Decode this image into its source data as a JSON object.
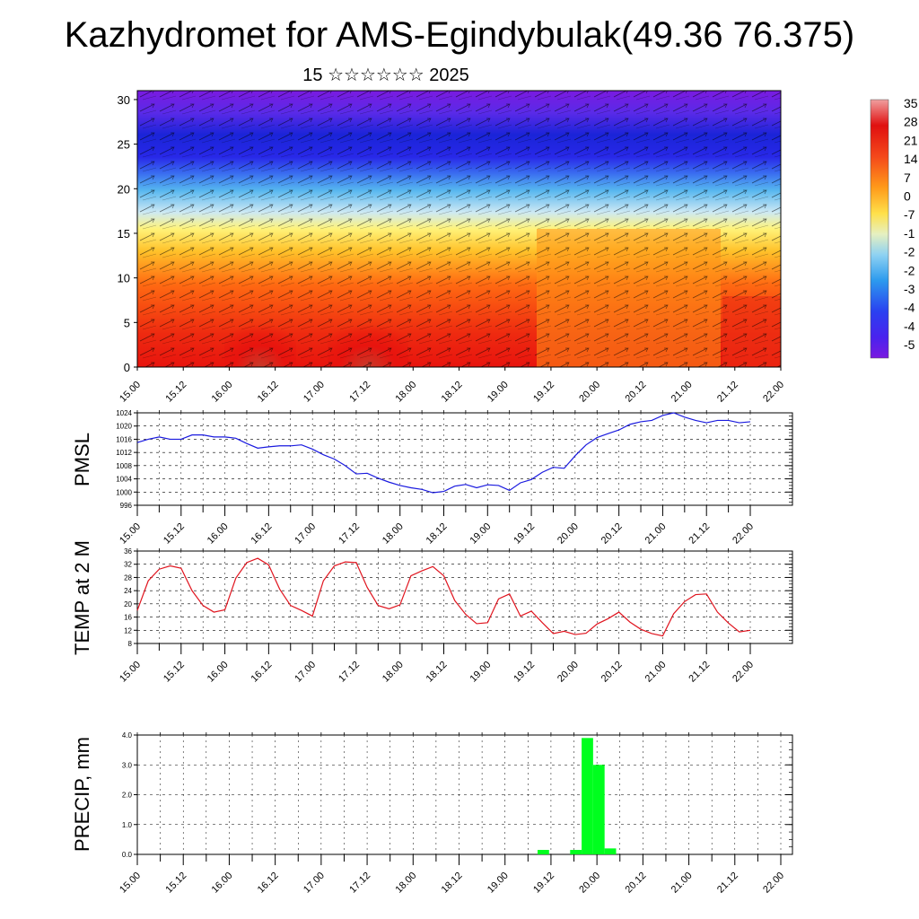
{
  "header": {
    "title": "Kazhydromet for AMS-Egindybulak(49.36 76.375)",
    "date_line": "15 ☆☆☆☆☆☆ 2025"
  },
  "colors": {
    "pmsl_line": "#1a1adf",
    "temp_line": "#e0141e",
    "precip_bar": "#00ff1e",
    "warm": "#e8140e",
    "cold": "#7a1ae0"
  },
  "chart_data": [
    {
      "id": "cross_section",
      "type": "heatmap",
      "title": "",
      "x_ticks": [
        "15.00",
        "15.12",
        "16.00",
        "16.12",
        "17.00",
        "17.12",
        "18.00",
        "18.12",
        "19.00",
        "19.12",
        "20.00",
        "20.12",
        "21.00",
        "21.12",
        "22.00"
      ],
      "y_ticks": [
        "0",
        "5",
        "10",
        "15",
        "20",
        "25",
        "30"
      ],
      "ylim": [
        0,
        31
      ],
      "colorbar_labels": [
        "35",
        "28",
        "21",
        "14",
        "7",
        "0",
        "-7",
        "-1",
        "-2",
        "-2",
        "-3",
        "-4",
        "-4",
        "-5"
      ]
    },
    {
      "id": "pmsl",
      "type": "line",
      "ylabel": "PMSL",
      "x_ticks": [
        "15.00",
        "15.12",
        "16.00",
        "16.12",
        "17.00",
        "17.12",
        "18.00",
        "18.12",
        "19.00",
        "19.12",
        "20.00",
        "20.12",
        "21.00",
        "21.12",
        "22.00"
      ],
      "y_ticks": [
        "1024",
        "1020",
        "1016",
        "1012",
        "1008",
        "1004",
        "1000",
        "996"
      ],
      "ylim": [
        996,
        1024
      ],
      "xlim_hours": [
        0,
        168
      ],
      "step_hours": 3,
      "grid": true,
      "values": [
        1015,
        1016,
        1016.7,
        1016,
        1016,
        1017.3,
        1017.3,
        1016.7,
        1016.7,
        1016.3,
        1014.7,
        1013.3,
        1013.7,
        1014,
        1014,
        1014.3,
        1013,
        1011.3,
        1010,
        1008,
        1005.5,
        1005.7,
        1004.2,
        1003,
        1002,
        1001.3,
        1000.8,
        999.8,
        1000.2,
        1001.8,
        1002.3,
        1001.3,
        1002.2,
        1002,
        1000.5,
        1002.8,
        1003.8,
        1006,
        1007.5,
        1007.2,
        1011,
        1014.3,
        1016.5,
        1017.7,
        1018.8,
        1020.5,
        1021.3,
        1021.7,
        1023.2,
        1024,
        1022.7,
        1021.7,
        1021,
        1021.7,
        1021.7,
        1021,
        1021.3
      ]
    },
    {
      "id": "temp",
      "type": "line",
      "ylabel": "TEMP at 2 M",
      "x_ticks": [
        "15.00",
        "15.12",
        "16.00",
        "16.12",
        "17.00",
        "17.12",
        "18.00",
        "18.12",
        "19.00",
        "19.12",
        "20.00",
        "20.12",
        "21.00",
        "21.12",
        "22.00"
      ],
      "y_ticks": [
        "36",
        "32",
        "28",
        "24",
        "20",
        "16",
        "12",
        "8"
      ],
      "ylim": [
        8,
        36
      ],
      "xlim_hours": [
        0,
        168
      ],
      "step_hours": 3,
      "grid": true,
      "values": [
        18,
        27,
        30.5,
        31.5,
        30.8,
        24,
        19.5,
        17.5,
        18.2,
        27.8,
        32.5,
        33.8,
        31.8,
        24.5,
        19.5,
        18,
        16.3,
        27,
        31.5,
        32.7,
        32.5,
        25,
        19.5,
        18.5,
        19.7,
        28.5,
        30,
        31.3,
        28.5,
        21,
        16.8,
        14,
        14.3,
        21.5,
        23,
        16.3,
        17.8,
        14.3,
        11,
        11.7,
        10.7,
        11.1,
        13.9,
        15.5,
        17.5,
        14.5,
        12.3,
        11,
        10.3,
        17,
        20.7,
        22.8,
        23,
        17.5,
        14.2,
        11.5,
        12
      ]
    },
    {
      "id": "precip",
      "type": "bar",
      "ylabel": "PRECIP, mm",
      "x_ticks": [
        "15.00",
        "15.12",
        "16.00",
        "16.12",
        "17.00",
        "17.12",
        "18.00",
        "18.12",
        "19.00",
        "19.12",
        "20.00",
        "20.12",
        "21.00",
        "21.12",
        "22.00"
      ],
      "y_ticks": [
        "4.0",
        "3.0",
        "2.0",
        "1.0",
        "0.0"
      ],
      "ylim": [
        0,
        4
      ],
      "xlim_hours": [
        0,
        168
      ],
      "bars": [
        {
          "start_hour": 104.5,
          "end_hour": 107.5,
          "value": 0.15
        },
        {
          "start_hour": 113,
          "end_hour": 116,
          "value": 0.15
        },
        {
          "start_hour": 116,
          "end_hour": 119,
          "value": 3.9
        },
        {
          "start_hour": 119,
          "end_hour": 122,
          "value": 3.0
        },
        {
          "start_hour": 122,
          "end_hour": 125,
          "value": 0.2
        }
      ]
    }
  ]
}
